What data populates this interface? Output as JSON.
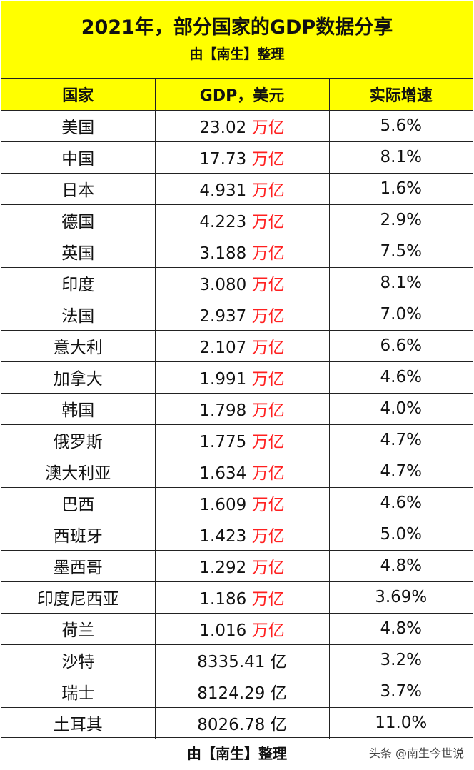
{
  "title": "2021年，部分国家的GDP数据分享",
  "subtitle": "由【南生】整理",
  "headers": [
    "国家",
    "GDP，美元",
    "实际增速"
  ],
  "rows": [
    {
      "country": "美国",
      "gdp": "23.02",
      "unit": "万亿",
      "growth": "5.6%"
    },
    {
      "country": "中国",
      "gdp": "17.73",
      "unit": "万亿",
      "growth": "8.1%"
    },
    {
      "country": "日本",
      "gdp": "4.931",
      "unit": "万亿",
      "growth": "1.6%"
    },
    {
      "country": "德国",
      "gdp": "4.223",
      "unit": "万亿",
      "growth": "2.9%"
    },
    {
      "country": "英国",
      "gdp": "3.188",
      "unit": "万亿",
      "growth": "7.5%"
    },
    {
      "country": "印度",
      "gdp": "3.080",
      "unit": "万亿",
      "growth": "8.1%"
    },
    {
      "country": "法国",
      "gdp": "2.937",
      "unit": "万亿",
      "growth": "7.0%"
    },
    {
      "country": "意大利",
      "gdp": "2.107",
      "unit": "万亿",
      "growth": "6.6%"
    },
    {
      "country": "加拿大",
      "gdp": "1.991",
      "unit": "万亿",
      "growth": "4.6%"
    },
    {
      "country": "韩国",
      "gdp": "1.798",
      "unit": "万亿",
      "growth": "4.0%"
    },
    {
      "country": "俄罗斯",
      "gdp": "1.775",
      "unit": "万亿",
      "growth": "4.7%"
    },
    {
      "country": "澳大利亚",
      "gdp": "1.634",
      "unit": "万亿",
      "growth": "4.7%"
    },
    {
      "country": "巴西",
      "gdp": "1.609",
      "unit": "万亿",
      "growth": "4.6%"
    },
    {
      "country": "西班牙",
      "gdp": "1.423",
      "unit": "万亿",
      "growth": "5.0%"
    },
    {
      "country": "墨西哥",
      "gdp": "1.292",
      "unit": "万亿",
      "growth": "4.8%"
    },
    {
      "country": "印度尼西亚",
      "gdp": "1.186",
      "unit": "万亿",
      "growth": "3.69%"
    },
    {
      "country": "荷兰",
      "gdp": "1.016",
      "unit": "万亿",
      "growth": "4.8%"
    },
    {
      "country": "沙特",
      "gdp": "8335.41",
      "unit": "亿",
      "growth": "3.2%"
    },
    {
      "country": "瑞士",
      "gdp": "8124.29",
      "unit": "亿",
      "growth": "3.7%"
    },
    {
      "country": "土耳其",
      "gdp": "8026.78",
      "unit": "亿",
      "growth": "11.0%"
    }
  ],
  "footer": {
    "credit": "由【南生】整理",
    "watermark": "头条 @南生今世说"
  },
  "colors": {
    "header_bg": "#ffff00",
    "unit_red": "#ff2020"
  }
}
